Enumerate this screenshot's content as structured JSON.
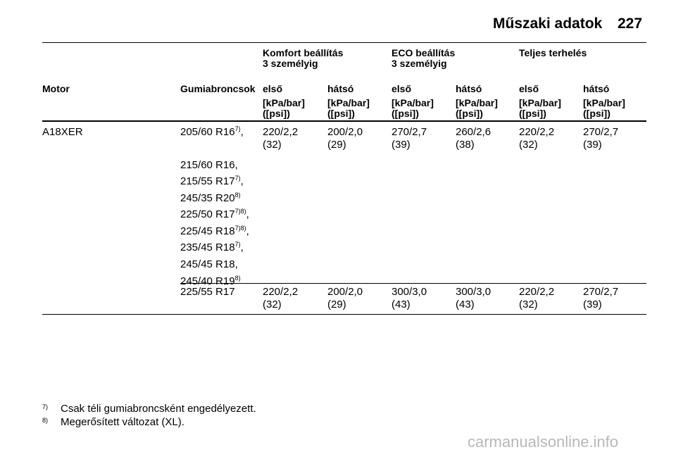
{
  "header": {
    "title": "Műszaki adatok",
    "page": "227"
  },
  "table": {
    "groups": [
      {
        "title": "Komfort beállítás",
        "subtitle": "3 személyig"
      },
      {
        "title": "ECO beállítás",
        "subtitle": "3 személyig"
      },
      {
        "title": "Teljes terhelés"
      }
    ],
    "columns": [
      "Motor",
      "Gumiabroncsok",
      "első",
      "hátsó",
      "első",
      "hátsó",
      "első",
      "hátsó"
    ],
    "units": [
      {
        "unit": "[kPa/bar]",
        "alt": "([psi])"
      },
      {
        "unit": "[kPa/bar]",
        "alt": "([psi])"
      },
      {
        "unit": "[kPa/bar]",
        "alt": "([psi])"
      },
      {
        "unit": "[kPa/bar]",
        "alt": "([psi])"
      },
      {
        "unit": "[kPa/bar]",
        "alt": "([psi])"
      },
      {
        "unit": "[kPa/bar]",
        "alt": "([psi])"
      }
    ],
    "rows": [
      {
        "motor": "A18XER",
        "tires": [
          {
            "size": "205/60 R16",
            "sup": "7)",
            "suffix": ","
          },
          {
            "size": "215/60 R16,"
          },
          {
            "size": "215/55 R17",
            "sup": "7)",
            "suffix": ","
          },
          {
            "size": "245/35 R20",
            "sup": "8)"
          },
          {
            "size": "225/50 R17",
            "sup": "7)8)",
            "suffix": ","
          },
          {
            "size": "225/45 R18",
            "sup": "7)8)",
            "suffix": ","
          },
          {
            "size": "235/45 R18",
            "sup": "7)",
            "suffix": ","
          },
          {
            "size": "245/45 R18,"
          },
          {
            "size": "245/40 R19",
            "sup": "8)"
          }
        ],
        "values": [
          {
            "kpa": "220/2,2",
            "psi": "(32)"
          },
          {
            "kpa": "200/2,0",
            "psi": "(29)"
          },
          {
            "kpa": "270/2,7",
            "psi": "(39)"
          },
          {
            "kpa": "260/2,6",
            "psi": "(38)"
          },
          {
            "kpa": "220/2,2",
            "psi": "(32)"
          },
          {
            "kpa": "270/2,7",
            "psi": "(39)"
          }
        ]
      },
      {
        "tires": [
          {
            "size": "225/55 R17"
          }
        ],
        "values": [
          {
            "kpa": "220/2,2",
            "psi": "(32)"
          },
          {
            "kpa": "200/2,0",
            "psi": "(29)"
          },
          {
            "kpa": "300/3,0",
            "psi": "(43)"
          },
          {
            "kpa": "300/3,0",
            "psi": "(43)"
          },
          {
            "kpa": "220/2,2",
            "psi": "(32)"
          },
          {
            "kpa": "270/2,7",
            "psi": "(39)"
          }
        ]
      }
    ]
  },
  "footnotes": [
    {
      "mark": "7)",
      "text": "Csak téli gumiabroncsként engedélyezett."
    },
    {
      "mark": "8)",
      "text": "Megerősített változat (XL)."
    }
  ],
  "watermark": "carmanualsonline.info"
}
